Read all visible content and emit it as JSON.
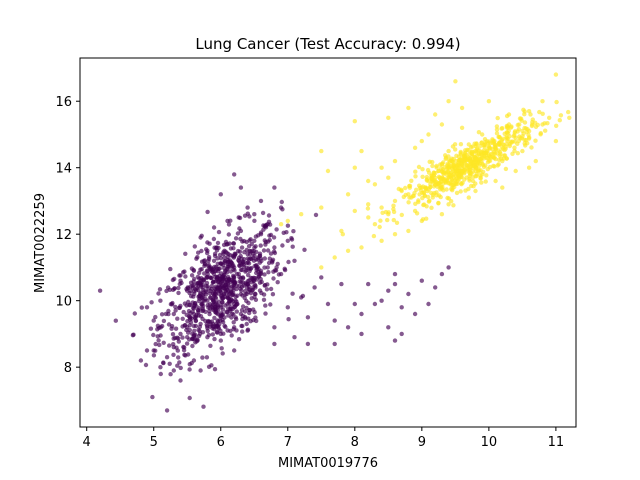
{
  "chart_data": {
    "type": "scatter",
    "title": "Lung Cancer  (Test Accuracy: 0.994)",
    "xlabel": "MIMAT0019776",
    "ylabel": "MIMAT0022259",
    "xlim": [
      3.9,
      11.3
    ],
    "ylim": [
      6.2,
      17.3
    ],
    "xticks": [
      4,
      5,
      6,
      7,
      8,
      9,
      10,
      11
    ],
    "yticks": [
      8,
      10,
      12,
      14,
      16
    ],
    "grid": false,
    "legend": null,
    "colors": {
      "class_0": "#440154",
      "class_1": "#fde725"
    },
    "series": [
      {
        "color_key": "class_0",
        "points": [
          [
            6.0,
            10.4
          ],
          [
            5.8,
            10.0
          ],
          [
            6.2,
            11.0
          ],
          [
            5.6,
            9.6
          ],
          [
            6.4,
            11.4
          ],
          [
            5.9,
            10.8
          ],
          [
            6.1,
            9.9
          ],
          [
            5.7,
            10.6
          ],
          [
            6.3,
            10.2
          ],
          [
            5.5,
            9.2
          ],
          [
            6.5,
            11.8
          ],
          [
            6.0,
            9.5
          ],
          [
            5.9,
            11.2
          ],
          [
            6.2,
            10.7
          ],
          [
            5.4,
            9.0
          ],
          [
            6.6,
            12.0
          ],
          [
            5.8,
            11.5
          ],
          [
            6.1,
            10.1
          ],
          [
            5.6,
            10.9
          ],
          [
            6.4,
            10.5
          ],
          [
            5.3,
            8.6
          ],
          [
            5.2,
            8.3
          ],
          [
            5.1,
            8.0
          ],
          [
            5.0,
            8.5
          ],
          [
            4.9,
            8.5
          ],
          [
            5.3,
            7.9
          ],
          [
            5.4,
            7.6
          ],
          [
            5.6,
            8.2
          ],
          [
            5.8,
            8.9
          ],
          [
            6.0,
            8.8
          ],
          [
            6.2,
            9.2
          ],
          [
            6.3,
            9.6
          ],
          [
            5.5,
            10.3
          ],
          [
            5.7,
            11.9
          ],
          [
            5.9,
            12.2
          ],
          [
            6.1,
            12.4
          ],
          [
            6.3,
            12.1
          ],
          [
            6.5,
            12.6
          ],
          [
            6.7,
            12.3
          ],
          [
            6.8,
            11.6
          ],
          [
            6.9,
            12.8
          ],
          [
            6.6,
            13.0
          ],
          [
            6.3,
            13.4
          ],
          [
            6.0,
            13.2
          ],
          [
            6.2,
            13.8
          ],
          [
            6.8,
            13.4
          ],
          [
            7.0,
            11.8
          ],
          [
            7.1,
            11.2
          ],
          [
            6.9,
            10.8
          ],
          [
            7.2,
            10.1
          ],
          [
            7.4,
            10.4
          ],
          [
            7.0,
            9.8
          ],
          [
            6.8,
            9.2
          ],
          [
            7.3,
            9.5
          ],
          [
            7.6,
            9.9
          ],
          [
            7.8,
            10.5
          ],
          [
            7.5,
            10.7
          ],
          [
            7.7,
            9.4
          ],
          [
            7.9,
            9.2
          ],
          [
            8.1,
            9.6
          ],
          [
            7.3,
            8.7
          ],
          [
            7.1,
            8.9
          ],
          [
            8.3,
            9.9
          ],
          [
            8.5,
            10.3
          ],
          [
            8.2,
            10.5
          ],
          [
            8.6,
            10.8
          ],
          [
            8.8,
            10.2
          ],
          [
            9.0,
            10.6
          ],
          [
            9.2,
            10.4
          ],
          [
            8.4,
            10.0
          ],
          [
            8.7,
            9.8
          ],
          [
            8.9,
            9.6
          ],
          [
            9.1,
            9.9
          ],
          [
            9.3,
            10.8
          ],
          [
            9.4,
            11.0
          ],
          [
            8.6,
            10.5
          ],
          [
            8.0,
            9.9
          ],
          [
            8.5,
            9.2
          ],
          [
            8.7,
            9.0
          ],
          [
            8.6,
            8.8
          ],
          [
            8.1,
            9.0
          ],
          [
            7.7,
            8.7
          ],
          [
            6.8,
            8.7
          ],
          [
            6.4,
            9.1
          ],
          [
            4.2,
            10.3
          ],
          [
            5.2,
            6.7
          ],
          [
            5.0,
            9.4
          ],
          [
            4.9,
            9.8
          ],
          [
            5.1,
            10.0
          ],
          [
            6.0,
            9.0
          ],
          [
            6.4,
            12.8
          ],
          [
            6.7,
            11.0
          ],
          [
            5.3,
            9.6
          ],
          [
            5.5,
            8.9
          ],
          [
            5.7,
            9.3
          ],
          [
            6.1,
            11.7
          ],
          [
            5.4,
            10.6
          ],
          [
            6.6,
            10.9
          ],
          [
            6.2,
            8.5
          ],
          [
            5.7,
            7.9
          ]
        ]
      },
      {
        "color_key": "class_1",
        "points": [
          [
            9.5,
            14.0
          ],
          [
            9.8,
            14.3
          ],
          [
            9.2,
            13.7
          ],
          [
            10.1,
            14.6
          ],
          [
            9.0,
            13.4
          ],
          [
            10.4,
            14.9
          ],
          [
            9.6,
            13.9
          ],
          [
            9.3,
            14.1
          ],
          [
            10.0,
            14.4
          ],
          [
            8.8,
            13.2
          ],
          [
            10.6,
            15.1
          ],
          [
            9.7,
            14.7
          ],
          [
            9.1,
            13.6
          ],
          [
            10.2,
            14.2
          ],
          [
            8.6,
            13.0
          ],
          [
            10.8,
            15.3
          ],
          [
            9.4,
            14.5
          ],
          [
            9.9,
            13.8
          ],
          [
            8.7,
            13.3
          ],
          [
            10.5,
            14.5
          ],
          [
            8.4,
            12.8
          ],
          [
            8.2,
            12.9
          ],
          [
            8.5,
            12.6
          ],
          [
            8.9,
            12.7
          ],
          [
            8.3,
            13.5
          ],
          [
            8.6,
            14.2
          ],
          [
            8.9,
            14.6
          ],
          [
            9.1,
            15.0
          ],
          [
            9.3,
            15.3
          ],
          [
            9.4,
            16.0
          ],
          [
            9.6,
            15.8
          ],
          [
            9.5,
            16.6
          ],
          [
            10.0,
            16.0
          ],
          [
            10.3,
            15.6
          ],
          [
            10.8,
            16.0
          ],
          [
            11.0,
            16.8
          ],
          [
            11.2,
            15.5
          ],
          [
            11.0,
            14.8
          ],
          [
            10.7,
            14.2
          ],
          [
            10.4,
            13.9
          ],
          [
            10.1,
            13.6
          ],
          [
            9.8,
            13.3
          ],
          [
            9.4,
            12.9
          ],
          [
            9.0,
            12.4
          ],
          [
            8.8,
            12.1
          ],
          [
            8.6,
            12.0
          ],
          [
            8.4,
            11.8
          ],
          [
            8.1,
            11.6
          ],
          [
            7.9,
            11.5
          ],
          [
            7.7,
            11.3
          ],
          [
            7.5,
            11.0
          ],
          [
            7.8,
            12.1
          ],
          [
            8.0,
            12.7
          ],
          [
            8.2,
            13.6
          ],
          [
            8.4,
            14.0
          ],
          [
            8.1,
            14.5
          ],
          [
            8.0,
            14.0
          ],
          [
            7.5,
            14.5
          ],
          [
            7.6,
            13.9
          ],
          [
            7.5,
            12.8
          ],
          [
            7.2,
            12.6
          ],
          [
            7.0,
            12.4
          ],
          [
            6.9,
            12.3
          ],
          [
            7.9,
            13.2
          ],
          [
            8.3,
            12.3
          ],
          [
            8.0,
            15.4
          ],
          [
            8.5,
            15.5
          ],
          [
            8.8,
            15.8
          ],
          [
            9.2,
            15.6
          ],
          [
            9.6,
            15.2
          ],
          [
            9.9,
            15.0
          ],
          [
            10.3,
            15.3
          ],
          [
            10.6,
            15.7
          ],
          [
            10.9,
            15.5
          ],
          [
            10.6,
            14.0
          ],
          [
            10.2,
            13.4
          ],
          [
            9.7,
            13.1
          ],
          [
            9.3,
            12.6
          ],
          [
            8.5,
            13.7
          ],
          [
            9.0,
            14.8
          ]
        ]
      }
    ],
    "cluster_centers": [
      {
        "color_key": "class_0",
        "center": [
          6.0,
          10.3
        ],
        "spread": [
          0.45,
          0.95
        ],
        "corr": 0.55,
        "count": 850
      },
      {
        "color_key": "class_1",
        "center": [
          9.7,
          14.1
        ],
        "spread": [
          0.5,
          0.65
        ],
        "corr": 0.88,
        "count": 620
      }
    ]
  }
}
